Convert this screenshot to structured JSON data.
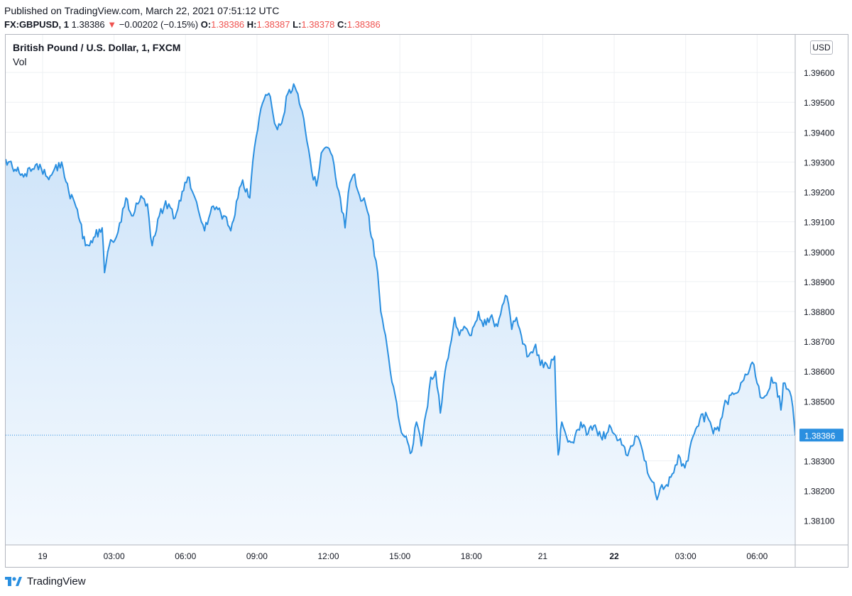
{
  "header": {
    "published": "Published on TradingView.com, March 22, 2021 07:51:12 UTC",
    "symbol": "FX:GBPUSD, 1",
    "last": "1.38386",
    "change_arrow": "▼",
    "change": "−0.00202 (−0.15%)",
    "o_label": "O:",
    "o_value": "1.38386",
    "h_label": "H:",
    "h_value": "1.38387",
    "l_label": "L:",
    "l_value": "1.38378",
    "c_label": "C:",
    "c_value": "1.38386"
  },
  "chart_title": "British Pound / U.S. Dollar, 1, FXCM",
  "volume_label": "Vol",
  "currency": "USD",
  "footer": {
    "brand": "TradingView"
  },
  "colors": {
    "line": "#2a8fe0",
    "area_top": "#c9e1f8",
    "area_bottom": "#f4f9fe",
    "vol_up": "#4fb3a5",
    "vol_down": "#ef6a68",
    "grid": "#eef0f3",
    "price_tag": "#2a8fe0"
  },
  "chart_data": {
    "type": "area",
    "title": "British Pound / U.S. Dollar, 1, FXCM",
    "y_axis": {
      "min": 1.3804,
      "max": 1.397,
      "ticks": [
        "1.39600",
        "1.39500",
        "1.39400",
        "1.39300",
        "1.39200",
        "1.39100",
        "1.39000",
        "1.38900",
        "1.38800",
        "1.38700",
        "1.38600",
        "1.38500",
        "1.38300",
        "1.38200",
        "1.38100"
      ],
      "tick_values": [
        1.396,
        1.395,
        1.394,
        1.393,
        1.392,
        1.391,
        1.39,
        1.389,
        1.388,
        1.387,
        1.386,
        1.385,
        1.383,
        1.382,
        1.381
      ]
    },
    "x_axis": {
      "labels": [
        "19",
        "03:00",
        "06:00",
        "09:00",
        "12:00",
        "15:00",
        "18:00",
        "21",
        "22",
        "03:00",
        "06:00"
      ],
      "label_positions_hours": [
        0,
        3,
        6,
        9,
        12,
        15,
        18,
        21,
        24,
        27,
        30
      ],
      "bold": [
        "22"
      ],
      "range_hours": [
        -1.55,
        31.6
      ]
    },
    "current_price": "1.38386",
    "current_value": 1.38386,
    "series": [
      {
        "name": "GBPUSD",
        "points": [
          [
            -1.55,
            1.3931
          ],
          [
            -1.1,
            1.3927
          ],
          [
            -0.8,
            1.3925
          ],
          [
            -0.3,
            1.3929
          ],
          [
            0.2,
            1.3925
          ],
          [
            0.8,
            1.393
          ],
          [
            1.1,
            1.392
          ],
          [
            1.4,
            1.3915
          ],
          [
            1.8,
            1.3902
          ],
          [
            2.2,
            1.3905
          ],
          [
            2.5,
            1.3908
          ],
          [
            2.6,
            1.3893
          ],
          [
            2.8,
            1.3902
          ],
          [
            3.1,
            1.3905
          ],
          [
            3.3,
            1.391
          ],
          [
            3.5,
            1.3918
          ],
          [
            3.8,
            1.3912
          ],
          [
            4.0,
            1.3916
          ],
          [
            4.2,
            1.3918
          ],
          [
            4.4,
            1.3916
          ],
          [
            4.6,
            1.3902
          ],
          [
            4.9,
            1.3912
          ],
          [
            5.1,
            1.3915
          ],
          [
            5.3,
            1.3916
          ],
          [
            5.5,
            1.3911
          ],
          [
            5.8,
            1.3917
          ],
          [
            6.1,
            1.3925
          ],
          [
            6.4,
            1.3918
          ],
          [
            6.6,
            1.3912
          ],
          [
            6.8,
            1.3907
          ],
          [
            7.1,
            1.3915
          ],
          [
            7.3,
            1.3915
          ],
          [
            7.6,
            1.3912
          ],
          [
            7.9,
            1.3907
          ],
          [
            8.2,
            1.3918
          ],
          [
            8.4,
            1.3924
          ],
          [
            8.7,
            1.3918
          ],
          [
            8.9,
            1.3935
          ],
          [
            9.1,
            1.3945
          ],
          [
            9.3,
            1.3951
          ],
          [
            9.5,
            1.3953
          ],
          [
            9.8,
            1.3942
          ],
          [
            10.1,
            1.3945
          ],
          [
            10.3,
            1.3953
          ],
          [
            10.6,
            1.3955
          ],
          [
            10.9,
            1.3947
          ],
          [
            11.1,
            1.3937
          ],
          [
            11.3,
            1.3927
          ],
          [
            11.5,
            1.3922
          ],
          [
            11.7,
            1.3933
          ],
          [
            11.9,
            1.3935
          ],
          [
            12.1,
            1.3933
          ],
          [
            12.3,
            1.3925
          ],
          [
            12.5,
            1.3918
          ],
          [
            12.7,
            1.3908
          ],
          [
            12.9,
            1.3923
          ],
          [
            13.1,
            1.3926
          ],
          [
            13.3,
            1.3919
          ],
          [
            13.5,
            1.3918
          ],
          [
            13.7,
            1.3912
          ],
          [
            13.8,
            1.3905
          ],
          [
            14.0,
            1.3897
          ],
          [
            14.2,
            1.388
          ],
          [
            14.4,
            1.3872
          ],
          [
            14.6,
            1.386
          ],
          [
            14.8,
            1.3852
          ],
          [
            15.0,
            1.3842
          ],
          [
            15.2,
            1.3838
          ],
          [
            15.5,
            1.3833
          ],
          [
            15.7,
            1.3843
          ],
          [
            15.9,
            1.3835
          ],
          [
            16.1,
            1.3846
          ],
          [
            16.3,
            1.3858
          ],
          [
            16.5,
            1.386
          ],
          [
            16.7,
            1.3846
          ],
          [
            16.9,
            1.386
          ],
          [
            17.1,
            1.3868
          ],
          [
            17.3,
            1.3878
          ],
          [
            17.5,
            1.3872
          ],
          [
            17.7,
            1.3875
          ],
          [
            18.0,
            1.3872
          ],
          [
            18.3,
            1.388
          ],
          [
            18.5,
            1.3875
          ],
          [
            18.8,
            1.3878
          ],
          [
            19.1,
            1.3875
          ],
          [
            19.3,
            1.3882
          ],
          [
            19.5,
            1.3885
          ],
          [
            19.7,
            1.3874
          ],
          [
            19.9,
            1.3878
          ],
          [
            20.1,
            1.3872
          ],
          [
            20.4,
            1.3865
          ],
          [
            20.7,
            1.3869
          ],
          [
            20.9,
            1.3862
          ],
          [
            21.1,
            1.3863
          ],
          [
            21.3,
            1.3861
          ],
          [
            21.5,
            1.3865
          ],
          [
            21.6,
            1.3838
          ],
          [
            21.65,
            1.3832
          ],
          [
            21.8,
            1.3843
          ],
          [
            22.0,
            1.3838
          ],
          [
            22.3,
            1.3836
          ],
          [
            22.6,
            1.3843
          ],
          [
            22.9,
            1.3839
          ],
          [
            23.2,
            1.3842
          ],
          [
            23.5,
            1.3837
          ],
          [
            23.8,
            1.3842
          ],
          [
            24.0,
            1.3839
          ],
          [
            24.2,
            1.3837
          ],
          [
            24.5,
            1.3832
          ],
          [
            24.7,
            1.3835
          ],
          [
            25.0,
            1.3838
          ],
          [
            25.2,
            1.3833
          ],
          [
            25.4,
            1.3826
          ],
          [
            25.6,
            1.3823
          ],
          [
            25.8,
            1.3817
          ],
          [
            26.0,
            1.3822
          ],
          [
            26.2,
            1.3822
          ],
          [
            26.5,
            1.3826
          ],
          [
            26.7,
            1.3832
          ],
          [
            26.9,
            1.3829
          ],
          [
            27.1,
            1.383
          ],
          [
            27.3,
            1.3838
          ],
          [
            27.6,
            1.3844
          ],
          [
            27.9,
            1.3845
          ],
          [
            28.1,
            1.3841
          ],
          [
            28.4,
            1.384
          ],
          [
            28.6,
            1.3848
          ],
          [
            28.9,
            1.3852
          ],
          [
            29.2,
            1.3853
          ],
          [
            29.5,
            1.3859
          ],
          [
            29.8,
            1.3863
          ],
          [
            30.0,
            1.3856
          ],
          [
            30.2,
            1.3851
          ],
          [
            30.4,
            1.3852
          ],
          [
            30.6,
            1.3858
          ],
          [
            30.8,
            1.3856
          ],
          [
            31.0,
            1.3847
          ],
          [
            31.1,
            1.3856
          ],
          [
            31.3,
            1.3854
          ],
          [
            31.5,
            1.3848
          ],
          [
            31.6,
            1.38386
          ]
        ]
      }
    ]
  }
}
